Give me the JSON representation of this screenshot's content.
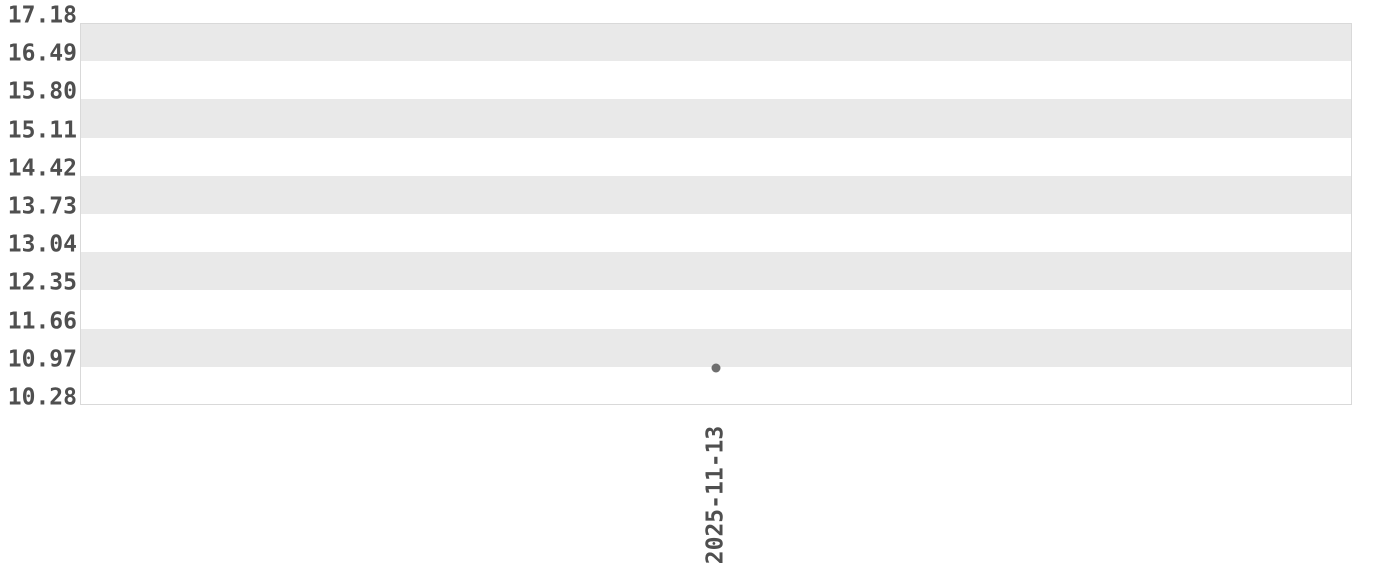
{
  "colors": {
    "background": "#ffffff",
    "band": "#e9e9e9",
    "plot_border": "#d9d9d9",
    "tick_label": "#4f4f4f",
    "data_point": "#6e6e6e"
  },
  "chart_data": {
    "type": "scatter",
    "title": "",
    "xlabel": "",
    "ylabel": "",
    "x": [
      "2025-11-13"
    ],
    "series": [
      {
        "values": [
          10.95
        ]
      }
    ],
    "ylim": [
      10.28,
      17.18
    ],
    "y_tick_step": 0.69,
    "y_tick_labels": [
      "17.18",
      "16.49",
      "15.80",
      "15.11",
      "14.42",
      "13.73",
      "13.04",
      "12.35",
      "11.66",
      "10.97",
      "10.28"
    ],
    "x_tick_labels": [
      "2025-11-13"
    ],
    "grid": "alternating horizontal gray bands between ticks, no vertical gridlines",
    "legend_position": "none"
  }
}
